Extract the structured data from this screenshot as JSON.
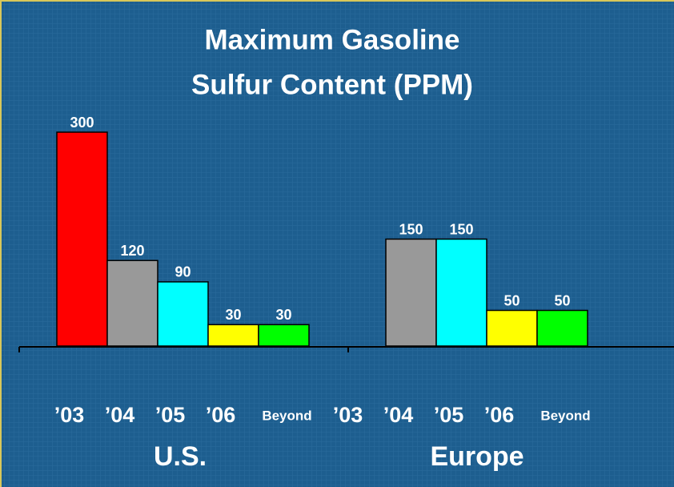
{
  "chart_data": {
    "type": "bar",
    "title": [
      "Maximum Gasoline",
      "Sulfur Content (PPM)"
    ],
    "categories": [
      "U.S.",
      "Europe"
    ],
    "series": [
      {
        "name": "’03",
        "color": "#ff0000",
        "values": [
          300,
          null
        ]
      },
      {
        "name": "’04",
        "color": "#999999",
        "values": [
          120,
          150
        ]
      },
      {
        "name": "’05",
        "color": "#00ffff",
        "values": [
          90,
          150
        ]
      },
      {
        "name": "’06",
        "color": "#ffff00",
        "values": [
          30,
          50
        ]
      },
      {
        "name": "Beyond",
        "color": "#00ff00",
        "values": [
          30,
          50
        ]
      }
    ]
  }
}
